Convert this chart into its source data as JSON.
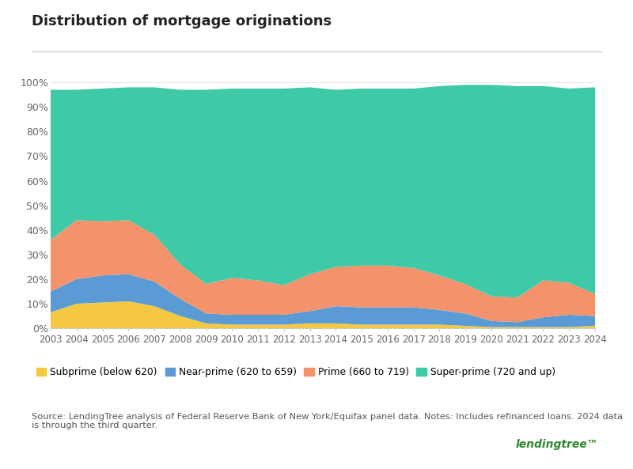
{
  "title": "Distribution of mortgage originations",
  "years": [
    2003,
    2004,
    2005,
    2006,
    2007,
    2008,
    2009,
    2010,
    2011,
    2012,
    2013,
    2014,
    2015,
    2016,
    2017,
    2018,
    2019,
    2020,
    2021,
    2022,
    2023,
    2024
  ],
  "subprime": [
    6.5,
    10,
    10.5,
    11,
    9,
    5,
    2,
    1.5,
    1.5,
    1.5,
    2,
    2,
    1.5,
    1.5,
    1.5,
    1.5,
    1,
    0.5,
    0.5,
    0.5,
    0.5,
    1
  ],
  "nearprime": [
    8.5,
    10,
    11,
    11,
    10,
    7,
    4,
    4,
    4,
    4,
    5,
    7,
    7,
    7,
    7,
    6,
    5,
    2.5,
    2,
    4,
    5,
    4
  ],
  "prime": [
    21,
    24,
    22,
    22,
    19,
    14,
    12,
    15,
    14,
    12,
    15,
    16,
    17,
    17,
    16,
    14,
    12,
    10,
    10,
    15,
    13,
    9
  ],
  "superprime": [
    61,
    53,
    54,
    54,
    60,
    71,
    79,
    77,
    78,
    80,
    76,
    72,
    72,
    72,
    73,
    77,
    81,
    86,
    86,
    79,
    79,
    84
  ],
  "colors": {
    "subprime": "#F5C842",
    "nearprime": "#5B9BD5",
    "prime": "#F4926B",
    "superprime": "#3EC9A7"
  },
  "legend_labels": {
    "subprime": "Subprime (below 620)",
    "nearprime": "Near-prime (620 to 659)",
    "prime": "Prime (660 to 719)",
    "superprime": "Super-prime (720 and up)"
  },
  "source_text": "Source: LendingTree analysis of Federal Reserve Bank of New York/Equifax panel data. Notes: Includes refinanced loans. 2024 data\nis through the third quarter.",
  "background_color": "#ffffff",
  "yticks": [
    0,
    10,
    20,
    30,
    40,
    50,
    60,
    70,
    80,
    90,
    100
  ],
  "ylim": [
    0,
    103
  ]
}
